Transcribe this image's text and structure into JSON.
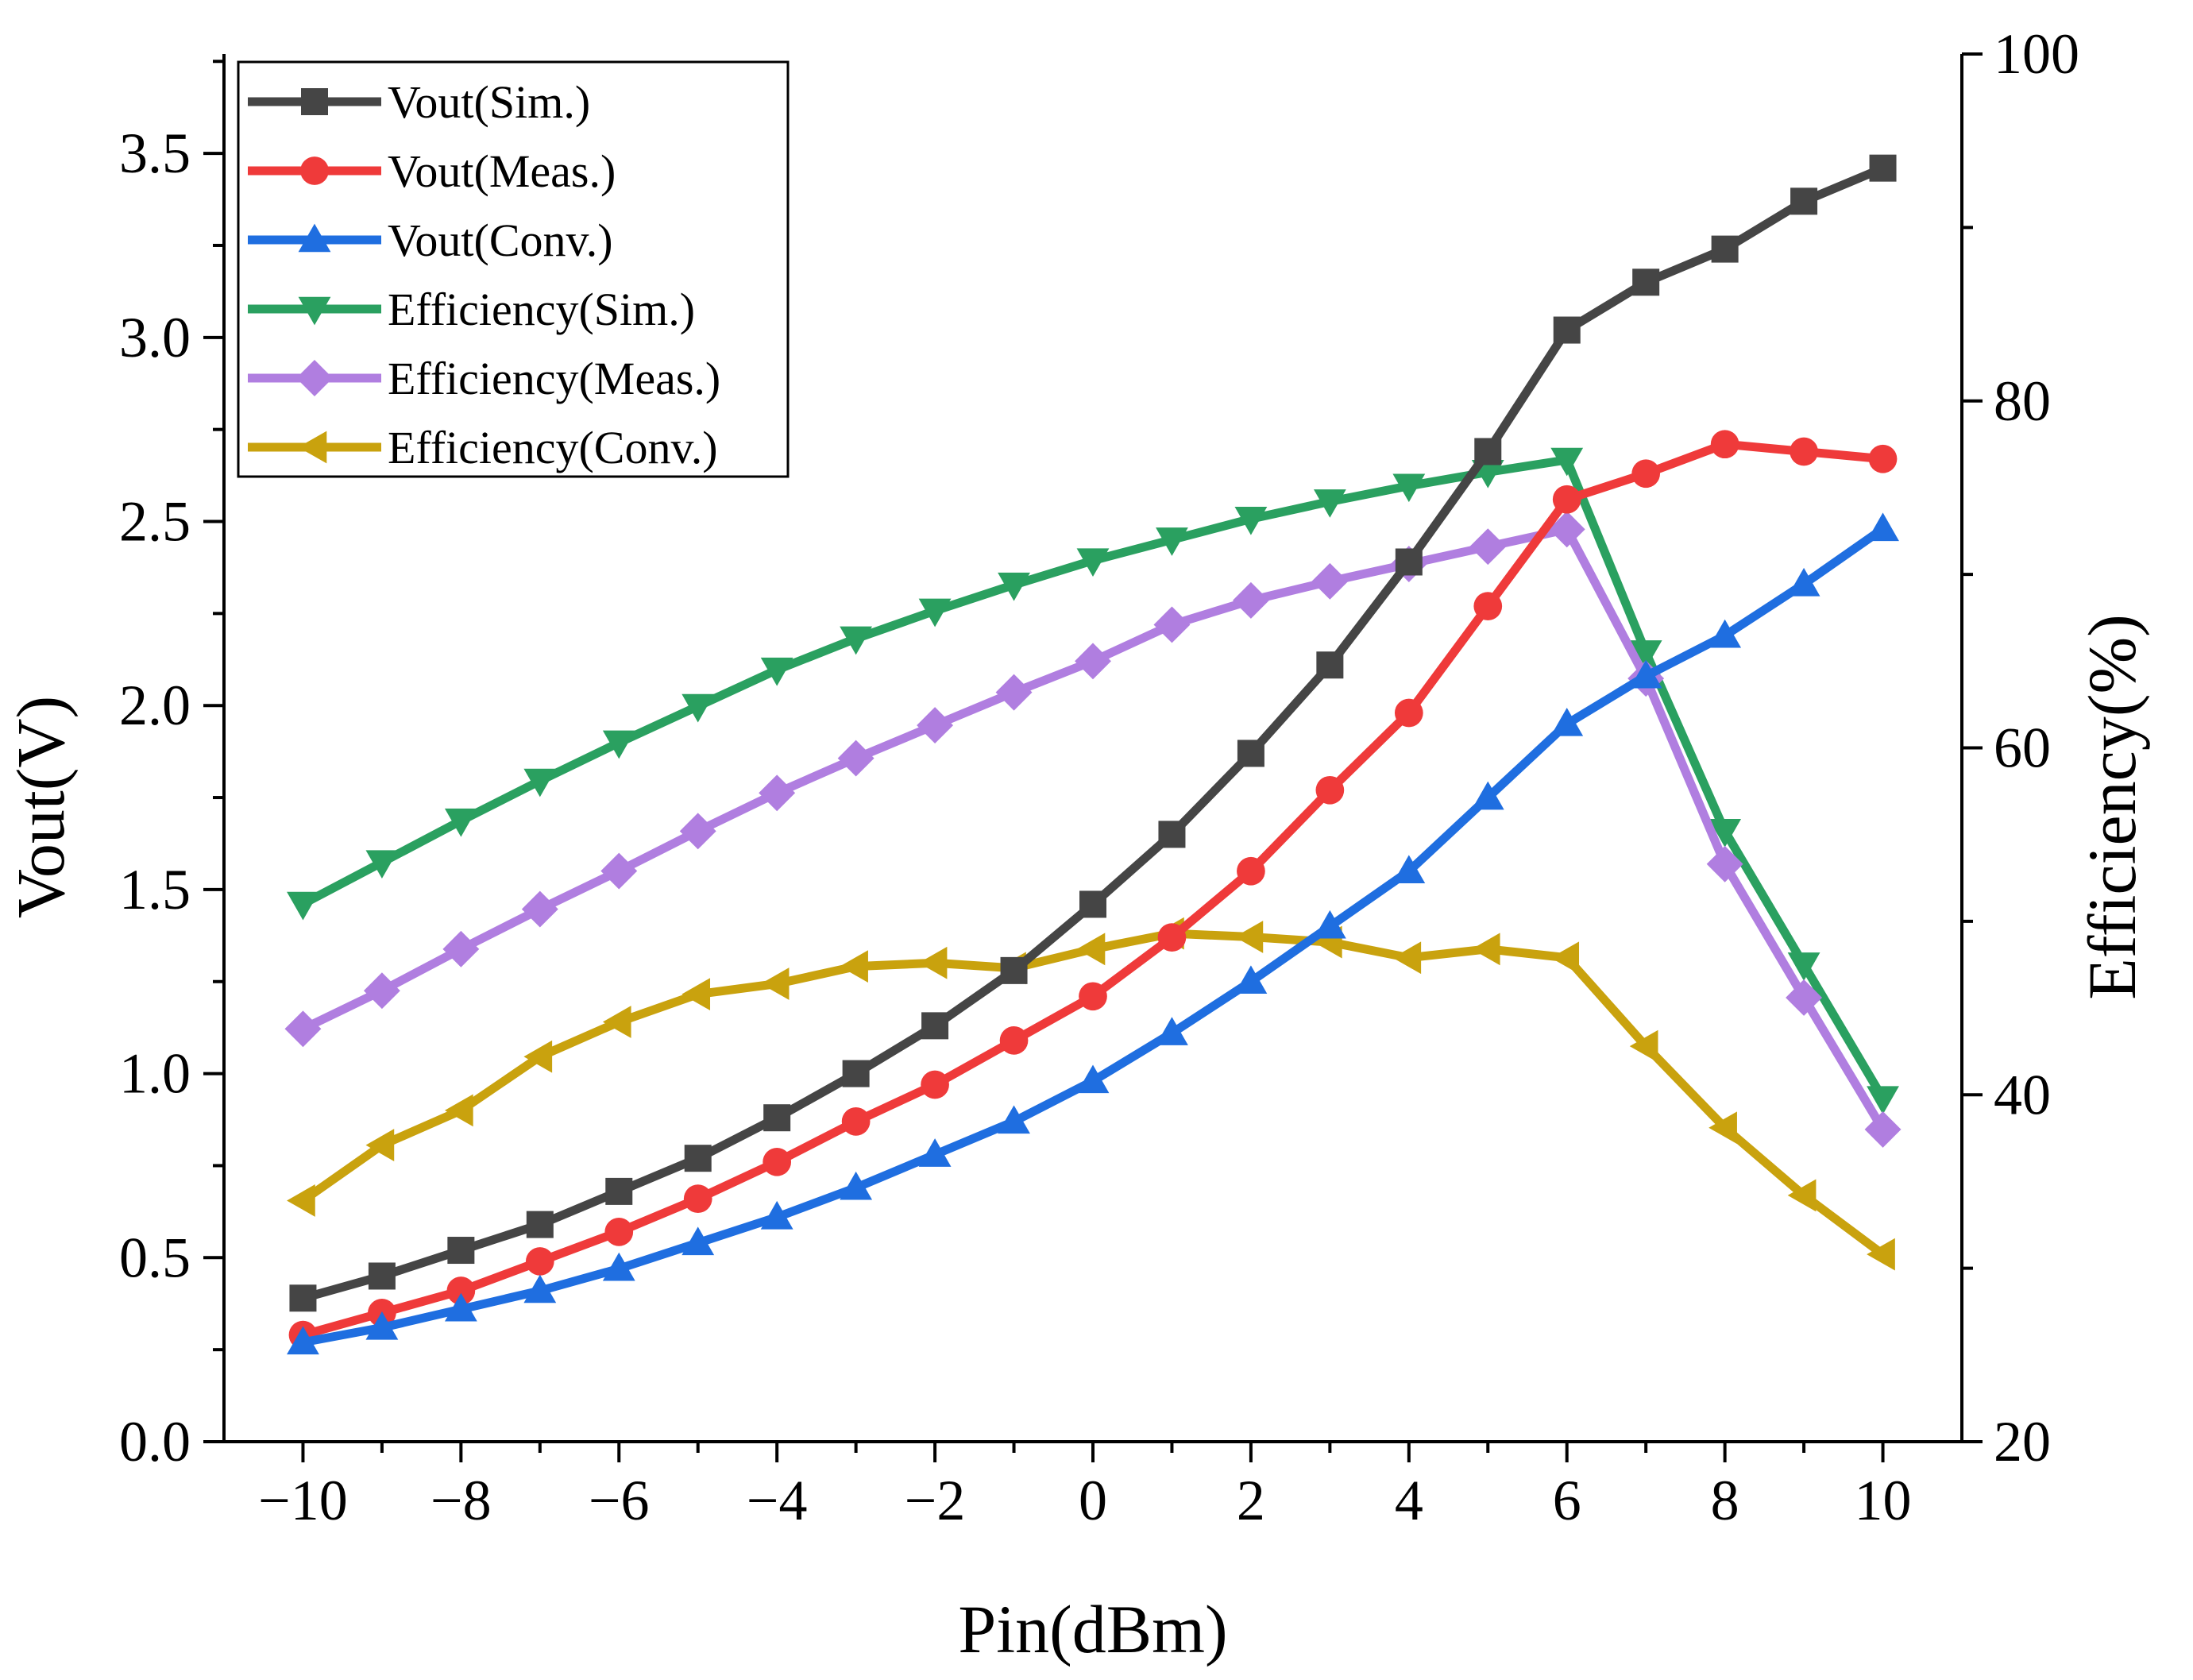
{
  "chart_data": {
    "type": "line",
    "xlabel": "Pin(dBm)",
    "ylabel": "Vout(V)",
    "y2label": "Efficiency(%)",
    "x": [
      -10,
      -9,
      -8,
      -7,
      -6,
      -5,
      -4,
      -3,
      -2,
      -1,
      0,
      1,
      2,
      3,
      4,
      5,
      6,
      7,
      8,
      9,
      10
    ],
    "xlim": [
      -11,
      11
    ],
    "ylim": [
      0,
      3.77
    ],
    "y2lim": [
      20,
      100
    ],
    "xticks": [
      -10,
      -8,
      -6,
      -4,
      -2,
      0,
      2,
      4,
      6,
      8,
      10
    ],
    "xtick_labels": [
      "−10",
      "−8",
      "−6",
      "−4",
      "−2",
      "0",
      "2",
      "4",
      "6",
      "8",
      "10"
    ],
    "yticks": [
      0.0,
      0.5,
      1.0,
      1.5,
      2.0,
      2.5,
      3.0,
      3.5
    ],
    "ytick_labels": [
      "0.0",
      "0.5",
      "1.0",
      "1.5",
      "2.0",
      "2.5",
      "3.0",
      "3.5"
    ],
    "y2ticks": [
      20,
      40,
      60,
      80,
      100
    ],
    "y2tick_labels": [
      "20",
      "40",
      "60",
      "80",
      "100"
    ],
    "legend_position": "top-left",
    "grid": false,
    "series": [
      {
        "name": "Vout(Sim.)",
        "axis": "left",
        "color": "#454545",
        "marker": "square",
        "values": [
          0.39,
          0.45,
          0.52,
          0.59,
          0.68,
          0.77,
          0.88,
          1.0,
          1.13,
          1.28,
          1.46,
          1.65,
          1.87,
          2.11,
          2.39,
          2.69,
          3.02,
          3.15,
          3.24,
          3.37,
          3.46
        ]
      },
      {
        "name": "Vout(Meas.)",
        "axis": "left",
        "color": "#ef3a3a",
        "marker": "circle",
        "values": [
          0.29,
          0.35,
          0.41,
          0.49,
          0.57,
          0.66,
          0.76,
          0.87,
          0.97,
          1.09,
          1.21,
          1.37,
          1.55,
          1.77,
          1.98,
          2.27,
          2.56,
          2.63,
          2.71,
          2.69,
          2.67
        ]
      },
      {
        "name": "Vout(Conv.)",
        "axis": "left",
        "color": "#1f6ee0",
        "marker": "triangle-up",
        "values": [
          0.27,
          0.31,
          0.36,
          0.41,
          0.47,
          0.54,
          0.61,
          0.69,
          0.78,
          0.87,
          0.98,
          1.11,
          1.25,
          1.4,
          1.55,
          1.75,
          1.95,
          2.08,
          2.19,
          2.33,
          2.48
        ]
      },
      {
        "name": "Efficiency(Sim.)",
        "axis": "right",
        "color": "#2aa060",
        "marker": "triangle-down",
        "values": [
          51,
          53.4,
          55.8,
          58.1,
          60.3,
          62.4,
          64.5,
          66.3,
          67.9,
          69.4,
          70.8,
          72.0,
          73.2,
          74.2,
          75.1,
          75.9,
          76.6,
          65.5,
          55.2,
          47.5,
          39.8
        ]
      },
      {
        "name": "Efficiency(Meas.)",
        "axis": "right",
        "color": "#b07ee0",
        "marker": "diamond",
        "values": [
          43.8,
          46.0,
          48.4,
          50.7,
          52.9,
          55.2,
          57.4,
          59.4,
          61.3,
          63.2,
          65.0,
          67.1,
          68.5,
          69.6,
          70.6,
          71.6,
          72.6,
          64.0,
          53.3,
          45.6,
          38.0
        ]
      },
      {
        "name": "Efficiency(Conv.)",
        "axis": "right",
        "color": "#c9a20e",
        "marker": "triangle-left",
        "values": [
          33.9,
          37.1,
          39.1,
          42.2,
          44.2,
          45.8,
          46.4,
          47.4,
          47.6,
          47.3,
          48.4,
          49.3,
          49.1,
          48.8,
          47.9,
          48.4,
          47.9,
          42.8,
          38.1,
          34.2,
          30.8
        ]
      }
    ]
  }
}
